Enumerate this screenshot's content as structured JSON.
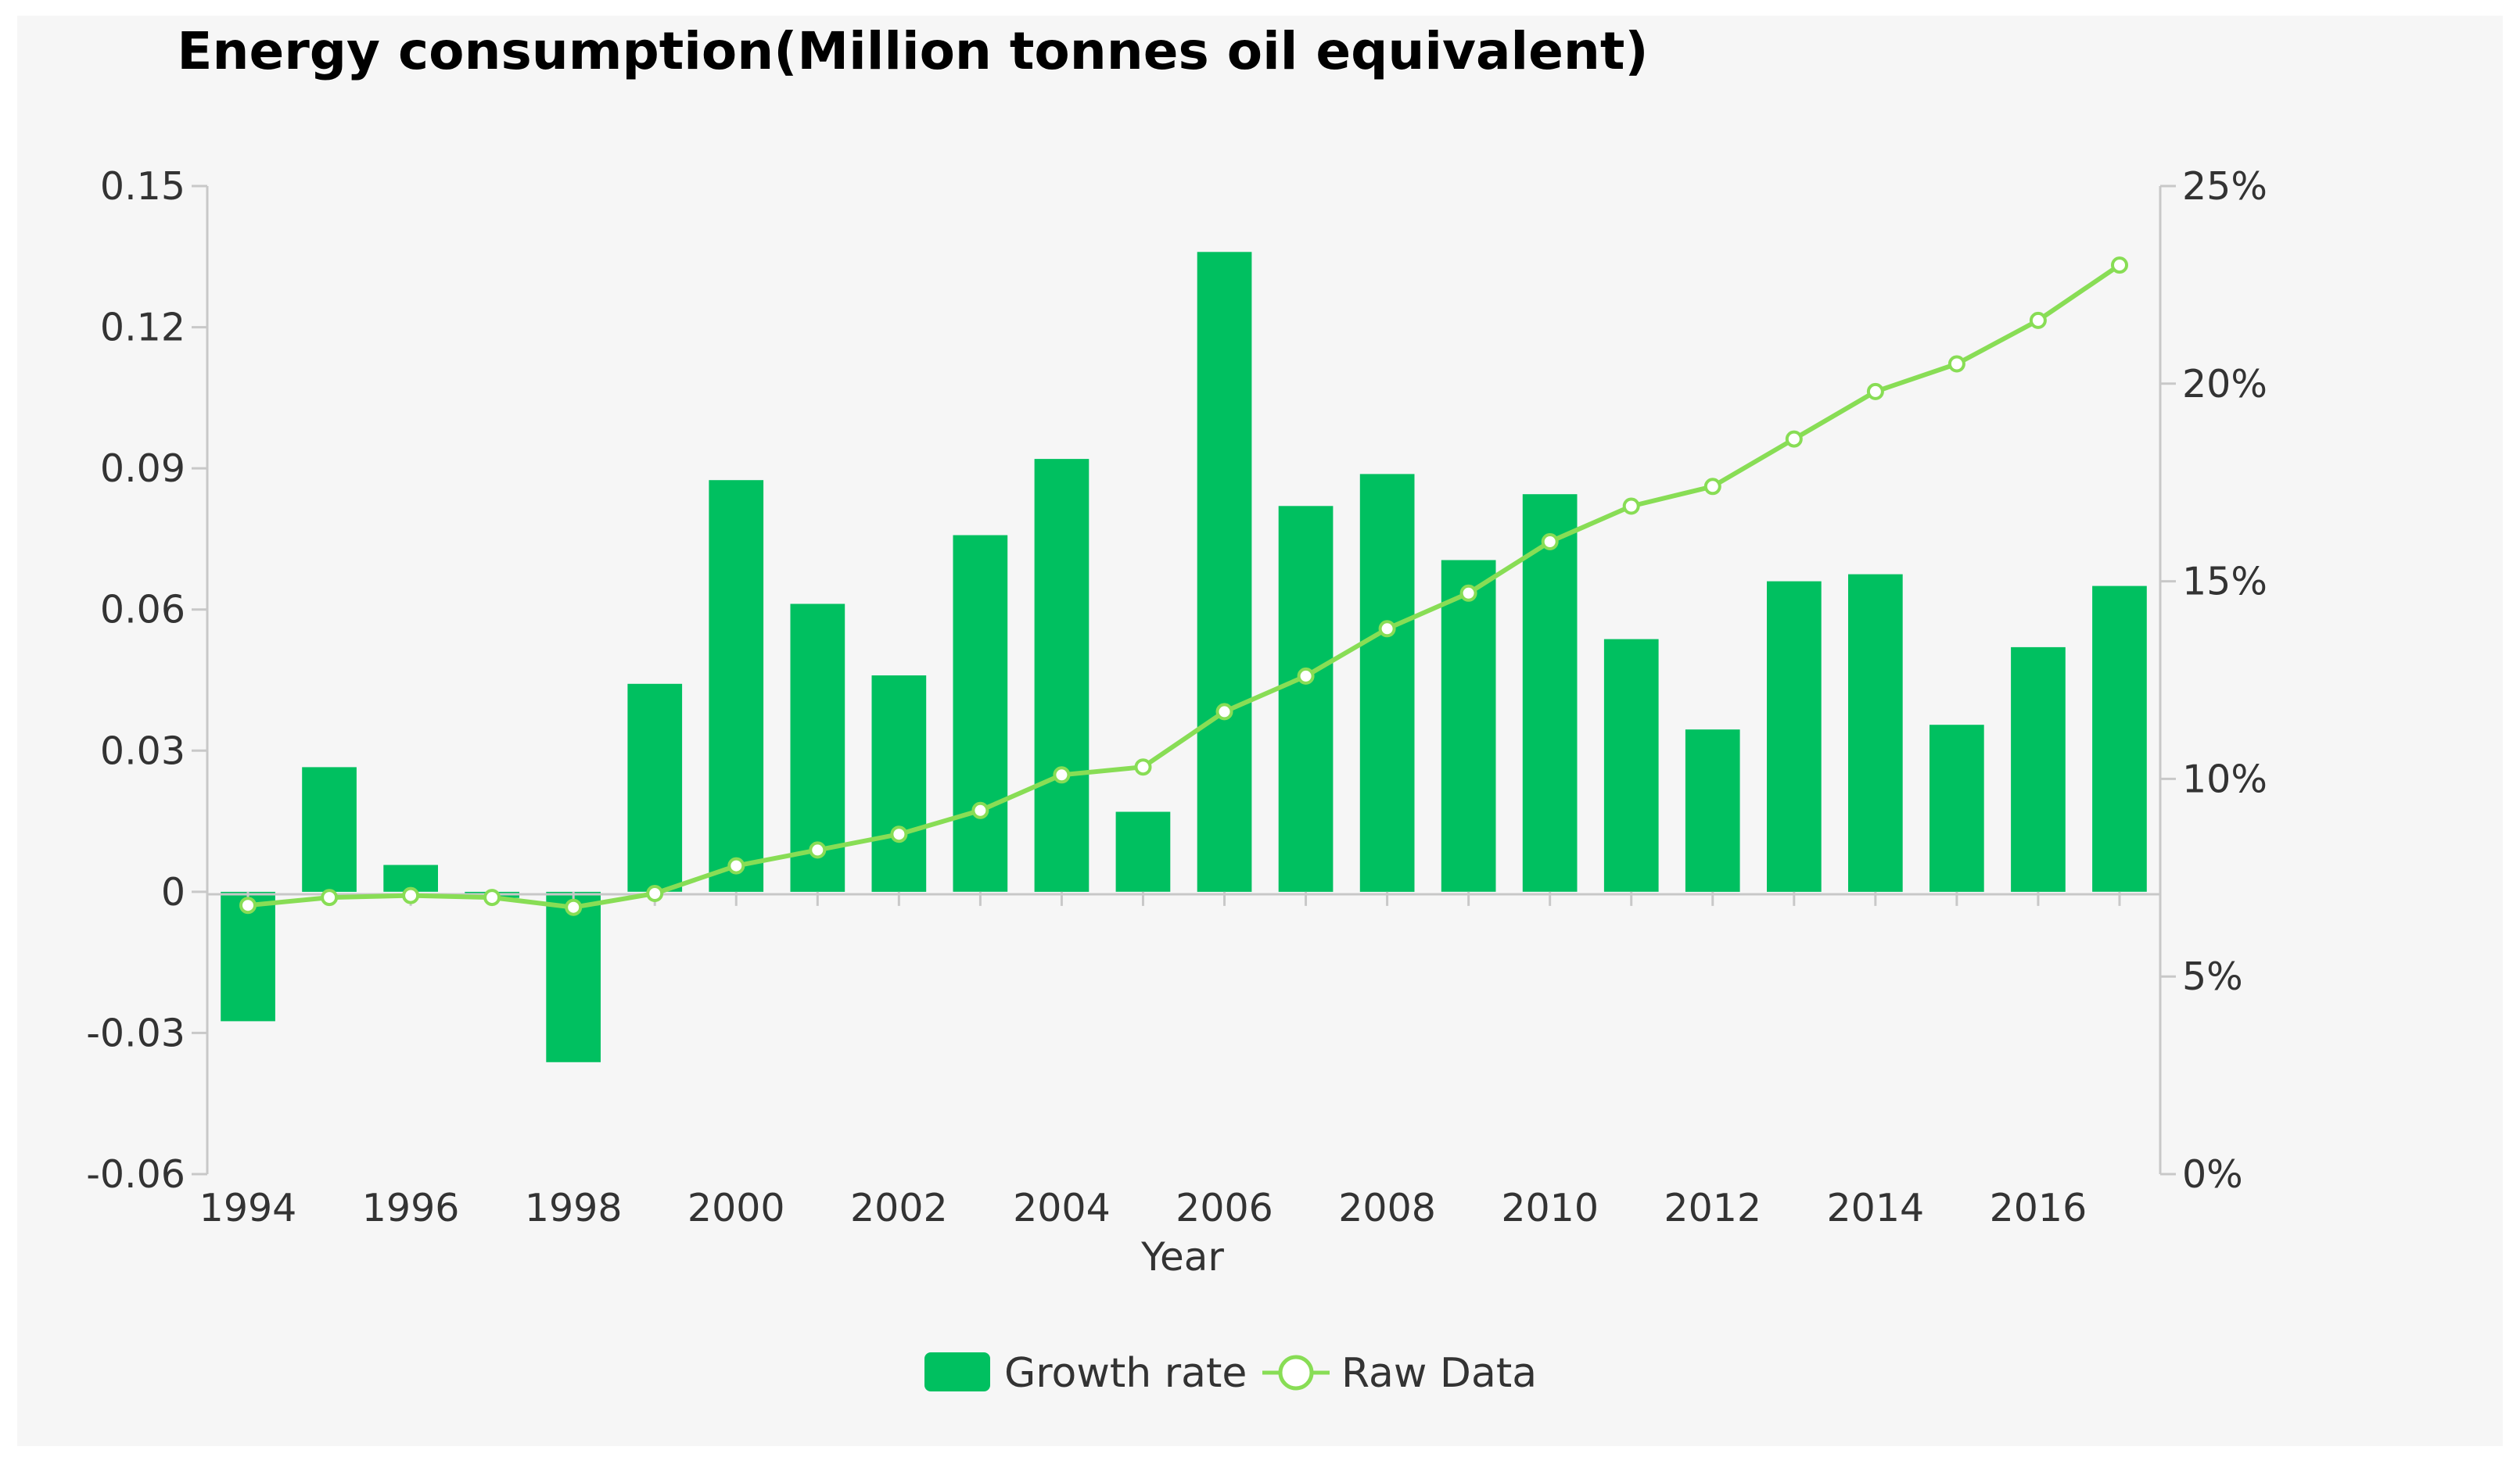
{
  "chart_data": {
    "type": "bar",
    "title": "Energy consumption(Million tonnes oil equivalent)",
    "xlabel": "Year",
    "ylabel": "",
    "ylabel_right": "",
    "x": [
      1994,
      1995,
      1996,
      1997,
      1998,
      1999,
      2000,
      2001,
      2002,
      2003,
      2004,
      2005,
      2006,
      2007,
      2008,
      2009,
      2010,
      2011,
      2012,
      2013,
      2014,
      2015,
      2016,
      2017
    ],
    "x_ticks": [
      "1994",
      "1996",
      "1998",
      "2000",
      "2002",
      "2004",
      "2006",
      "2008",
      "2010",
      "2012",
      "2014",
      "2016"
    ],
    "ylim": [
      -0.06,
      0.15
    ],
    "y_ticks": [
      "0.15",
      "0.12",
      "0.09",
      "0.06",
      "0.03",
      "0",
      "-0.03",
      "-0.06"
    ],
    "y_tick_values": [
      0.15,
      0.12,
      0.09,
      0.06,
      0.03,
      0,
      -0.03,
      -0.06
    ],
    "y2lim": [
      0,
      25
    ],
    "y2_ticks": [
      "25%",
      "20%",
      "15%",
      "10%",
      "5%",
      "0%"
    ],
    "y2_tick_values": [
      25,
      20,
      15,
      10,
      5,
      0
    ],
    "grid": false,
    "legend_position": "bottom-center",
    "series": [
      {
        "name": "Growth rate",
        "kind": "bar",
        "axis": "left",
        "color": "#00c060",
        "values": [
          -0.0275,
          0.0265,
          0.0057,
          -0.0013,
          -0.0362,
          0.0442,
          0.0875,
          0.0612,
          0.046,
          0.0758,
          0.092,
          0.017,
          0.136,
          0.082,
          0.0888,
          0.0705,
          0.0845,
          0.0537,
          0.0345,
          0.066,
          0.0675,
          0.0355,
          0.052,
          0.065
        ]
      },
      {
        "name": "Raw Data",
        "kind": "line",
        "axis": "right",
        "color": "#88dd55",
        "values": [
          6.8,
          7.0,
          7.05,
          7.0,
          6.75,
          7.1,
          7.8,
          8.2,
          8.6,
          9.2,
          10.1,
          10.3,
          11.7,
          12.6,
          13.8,
          14.7,
          16.0,
          16.9,
          17.4,
          18.6,
          19.8,
          20.5,
          21.6,
          23.0
        ]
      }
    ]
  }
}
